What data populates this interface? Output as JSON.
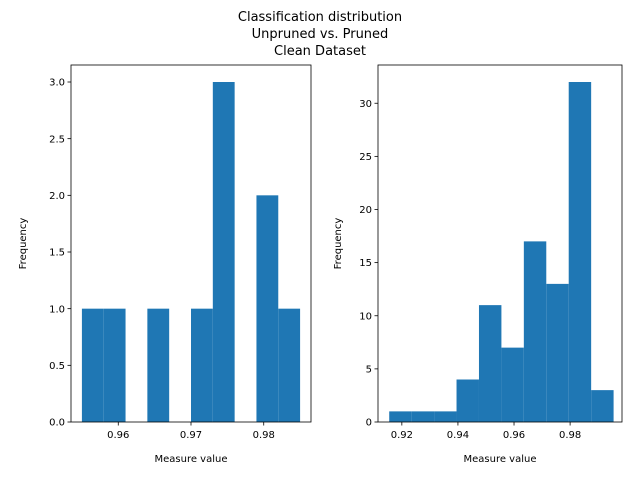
{
  "figure": {
    "title_lines": [
      "Classification distribution",
      "Unpruned vs. Pruned",
      "Clean Dataset"
    ]
  },
  "chart_data": [
    {
      "type": "bar",
      "xlabel": "Measure value",
      "ylabel": "Frequency",
      "xlim": [
        0.9535,
        0.9865
      ],
      "ylim": [
        0,
        3.15
      ],
      "xticks": [
        0.96,
        0.97,
        0.98
      ],
      "xtick_labels": [
        "0.96",
        "0.97",
        "0.98"
      ],
      "yticks": [
        0.0,
        0.5,
        1.0,
        1.5,
        2.0,
        2.5,
        3.0
      ],
      "ytick_labels": [
        "0.0",
        "0.5",
        "1.0",
        "1.5",
        "2.0",
        "2.5",
        "3.0"
      ],
      "color": "#1f77b4",
      "bins": [
        {
          "x0": 0.955,
          "x1": 0.958,
          "value": 1
        },
        {
          "x0": 0.958,
          "x1": 0.961,
          "value": 1
        },
        {
          "x0": 0.961,
          "x1": 0.964,
          "value": 0
        },
        {
          "x0": 0.964,
          "x1": 0.967,
          "value": 1
        },
        {
          "x0": 0.967,
          "x1": 0.97,
          "value": 0
        },
        {
          "x0": 0.97,
          "x1": 0.973,
          "value": 1
        },
        {
          "x0": 0.973,
          "x1": 0.976,
          "value": 3
        },
        {
          "x0": 0.976,
          "x1": 0.979,
          "value": 0
        },
        {
          "x0": 0.979,
          "x1": 0.982,
          "value": 2
        },
        {
          "x0": 0.982,
          "x1": 0.985,
          "value": 1
        }
      ]
    },
    {
      "type": "bar",
      "xlabel": "Measure value",
      "ylabel": "Frequency",
      "xlim": [
        0.9115,
        0.9985
      ],
      "ylim": [
        0,
        33.6
      ],
      "xticks": [
        0.92,
        0.94,
        0.96,
        0.98
      ],
      "xtick_labels": [
        "0.92",
        "0.94",
        "0.96",
        "0.98"
      ],
      "yticks": [
        0,
        5,
        10,
        15,
        20,
        25,
        30
      ],
      "ytick_labels": [
        "0",
        "5",
        "10",
        "15",
        "20",
        "25",
        "30"
      ],
      "color": "#1f77b4",
      "bins": [
        {
          "x0": 0.9155,
          "x1": 0.9235,
          "value": 1
        },
        {
          "x0": 0.9235,
          "x1": 0.9315,
          "value": 1
        },
        {
          "x0": 0.9315,
          "x1": 0.9395,
          "value": 1
        },
        {
          "x0": 0.9395,
          "x1": 0.9475,
          "value": 4
        },
        {
          "x0": 0.9475,
          "x1": 0.9555,
          "value": 11
        },
        {
          "x0": 0.9555,
          "x1": 0.9635,
          "value": 7
        },
        {
          "x0": 0.9635,
          "x1": 0.9715,
          "value": 17
        },
        {
          "x0": 0.9715,
          "x1": 0.9795,
          "value": 13
        },
        {
          "x0": 0.9795,
          "x1": 0.9875,
          "value": 32
        },
        {
          "x0": 0.9875,
          "x1": 0.9955,
          "value": 3
        }
      ]
    }
  ]
}
